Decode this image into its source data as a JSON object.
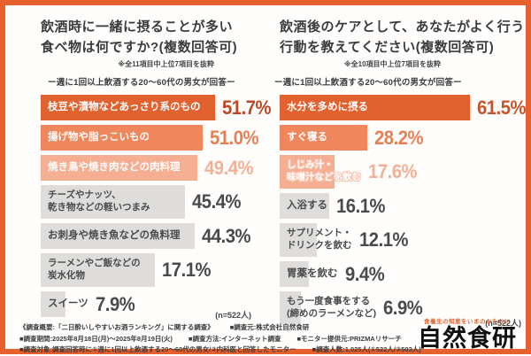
{
  "colors": {
    "accent": "#E7602E",
    "bar_dark": "#E2622F",
    "bar_mid": "#F0875C",
    "bar_light": "#F5AE92",
    "bar_gray": "#DEDDDB",
    "text_dark": "#3B3B3B"
  },
  "chart_data": [
    {
      "type": "bar",
      "orientation": "horizontal",
      "title": "飲酒時に一緒に摂ることが多い食べ物は何ですか?(複数回答可)",
      "title_lines": [
        "飲酒時に一緒に摂ることが多い",
        "食べ物は何ですか?(複数回答可)"
      ],
      "note": "※全11項目中上位7項目を抜粋",
      "subtitle": "ー週に1回以上飲酒する20〜60代の男女が回答ー",
      "sample_size": "(n=522人)",
      "unit": "%",
      "xlim": [
        0,
        60
      ],
      "legend": "none",
      "grid": false,
      "categories": [
        "枝豆や漬物などあっさり系のもの",
        "揚げ物や脂っこいもの",
        "焼き鳥や焼き肉などの肉料理",
        "チーズやナッツ、乾き物などの軽いつまみ",
        "お刺身や焼き魚などの魚料理",
        "ラーメンやご飯などの炭水化物",
        "スイーツ"
      ],
      "values": [
        51.7,
        51.0,
        49.4,
        45.4,
        44.3,
        17.1,
        7.9
      ],
      "rows": [
        {
          "label": "枝豆や漬物などあっさり系のもの",
          "value": 51.7,
          "display": "51.7%",
          "bar_color": "#E2622F",
          "label_color": "#FFFFFF",
          "pct_color": "#BE4522",
          "lines": 1,
          "fit": true
        },
        {
          "label": "揚げ物や脂っこいもの",
          "value": 51.0,
          "display": "51.0%",
          "bar_color": "#F0875C",
          "label_color": "#FFFFFF",
          "pct_color": "#E87E52",
          "lines": 1,
          "fit": true
        },
        {
          "label": "焼き鳥や焼き肉などの肉料理",
          "value": 49.4,
          "display": "49.4%",
          "bar_color": "#F5AE92",
          "label_color": "#FFFFFF",
          "pct_color": "#F3B096",
          "lines": 1,
          "fit": true
        },
        {
          "label": "チーズやナッツ、\n乾き物などの軽いつまみ",
          "value": 45.4,
          "display": "45.4%",
          "bar_color": "#DEDDDB",
          "label_color": "#4A4A4A",
          "pct_color": "#4A4A4A",
          "lines": 2,
          "fit": true
        },
        {
          "label": "お刺身や焼き魚などの魚料理",
          "value": 44.3,
          "display": "44.3%",
          "bar_color": "#DEDDDB",
          "label_color": "#4A4A4A",
          "pct_color": "#4A4A4A",
          "lines": 1,
          "fit": true
        },
        {
          "label": "ラーメンやご飯などの\n炭水化物",
          "value": 17.1,
          "display": "17.1%",
          "bar_color": "#DEDDDB",
          "label_color": "#4A4A4A",
          "pct_color": "#4A4A4A",
          "lines": 2,
          "fit": true
        },
        {
          "label": "スイーツ",
          "value": 7.9,
          "display": "7.9%",
          "bar_color": "#DEDDDB",
          "label_color": "#4A4A4A",
          "pct_color": "#4A4A4A",
          "lines": 1,
          "fit": false
        }
      ]
    },
    {
      "type": "bar",
      "orientation": "horizontal",
      "title": "飲酒後のケアとして、あなたがよく行う行動を教えてください(複数回答可)",
      "title_lines": [
        "飲酒後のケアとして、あなたがよく行う",
        "行動を教えてください(複数回答可)"
      ],
      "note": "※全10項目中上位7項目を抜粋",
      "subtitle": "ー週に1回以上飲酒する20〜60代の男女が回答ー",
      "sample_size": "(n=522人)",
      "unit": "%",
      "xlim": [
        0,
        70
      ],
      "legend": "none",
      "grid": false,
      "categories": [
        "水分を多めに摂る",
        "すぐ寝る",
        "しじみ汁・味噌汁などを飲む",
        "入浴する",
        "サプリメント・ドリンクを飲む",
        "胃薬を飲む",
        "もう一度食事をする(締めのラーメンなど)"
      ],
      "values": [
        61.5,
        28.2,
        17.6,
        16.1,
        12.1,
        9.4,
        6.9
      ],
      "rows": [
        {
          "label": "水分を多めに摂る",
          "value": 61.5,
          "display": "61.5%",
          "bar_color": "#E2622F",
          "label_color": "#FFFFFF",
          "pct_color": "#C8532B",
          "lines": 1,
          "fit": false
        },
        {
          "label": "すぐ寝る",
          "value": 28.2,
          "display": "28.2%",
          "bar_color": "#F0875C",
          "label_color": "#FFFFFF",
          "pct_color": "#E87E52",
          "lines": 1,
          "fit": false
        },
        {
          "label": "しじみ汁・\n味噌汁などを飲む",
          "value": 17.6,
          "display": "17.6%",
          "bar_color": "#F5AE92",
          "label_color": "#FFFFFF",
          "pct_color": "#F3B096",
          "lines": 2,
          "fit": false,
          "glow": true
        },
        {
          "label": "入浴する",
          "value": 16.1,
          "display": "16.1%",
          "bar_color": "#DEDDDB",
          "label_color": "#4A4A4A",
          "pct_color": "#4A4A4A",
          "lines": 1,
          "fit": false
        },
        {
          "label": "サプリメント・\nドリンクを飲む",
          "value": 12.1,
          "display": "12.1%",
          "bar_color": "#DEDDDB",
          "label_color": "#4A4A4A",
          "pct_color": "#4A4A4A",
          "lines": 2,
          "fit": false
        },
        {
          "label": "胃薬を飲む",
          "value": 9.4,
          "display": "9.4%",
          "bar_color": "#DEDDDB",
          "label_color": "#4A4A4A",
          "pct_color": "#4A4A4A",
          "lines": 1,
          "fit": false
        },
        {
          "label": "もう一度食事をする\n(締めのラーメンなど)",
          "value": 6.9,
          "display": "6.9%",
          "bar_color": "#DEDDDB",
          "label_color": "#4A4A4A",
          "pct_color": "#4A4A4A",
          "lines": 2,
          "fit": false
        }
      ]
    }
  ],
  "footer": {
    "lines": [
      [
        "《調査概要:「二日酔いしやすいお酒ランキング」に関する調査》",
        "■調査元:株式会社自然食研"
      ],
      [
        "■調査期間:2025年8月18日(月)〜2025年8月19日(火)",
        "■調査方法:インターネット調査",
        "■モニター提供元:PRIZMAリサーチ"
      ],
      [
        "■調査対象:調査回答時に①週に1回以上飲酒する20〜60代の男女/②内科医と回答したモニター",
        "■調査人数:1,025人(①522人/②503人)"
      ]
    ]
  },
  "logo": {
    "tagline": "食養生の知恵をいまのかたちに",
    "name": "自然食研"
  }
}
